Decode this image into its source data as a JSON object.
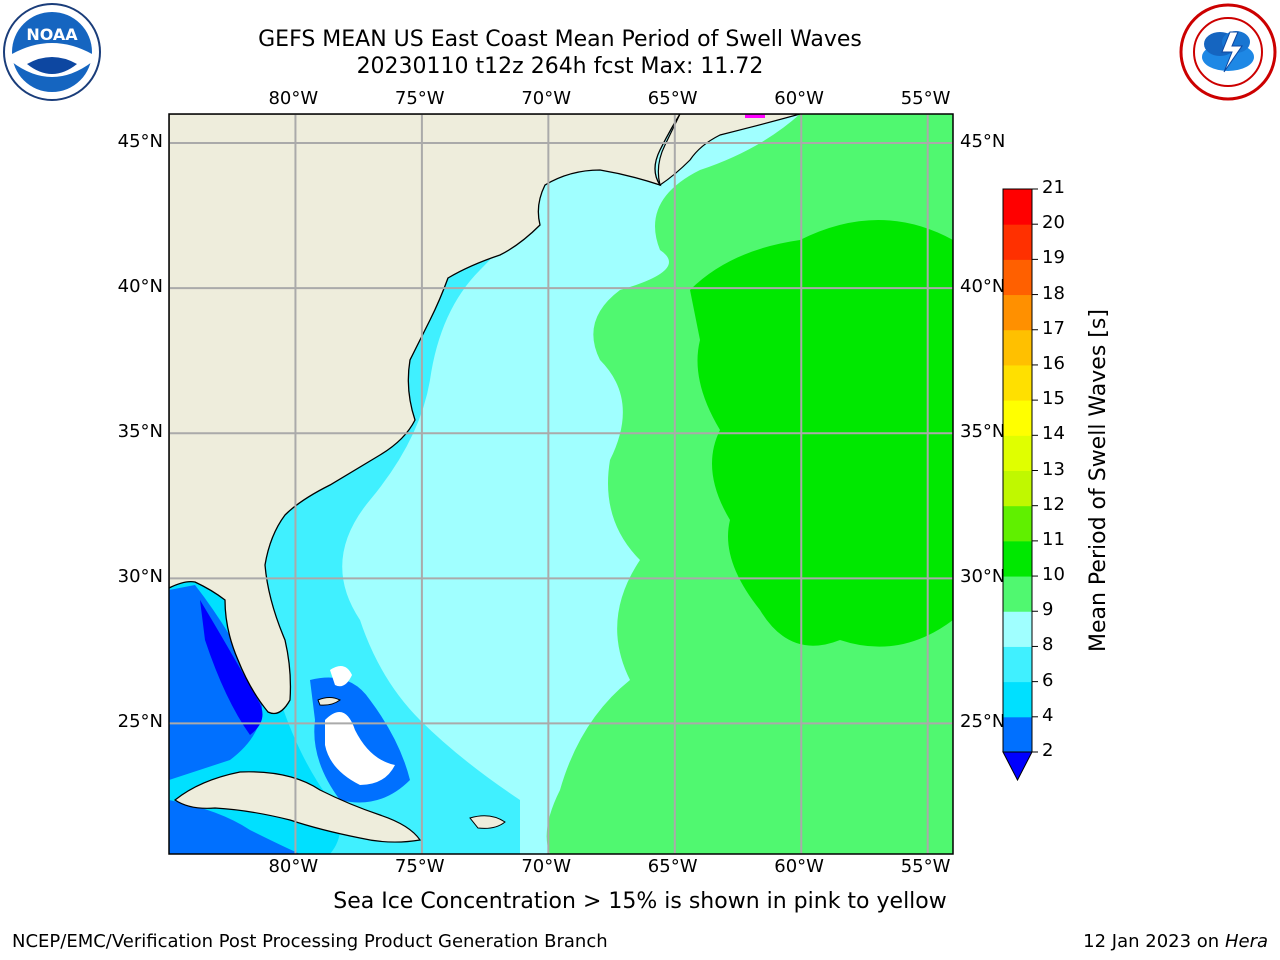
{
  "header": {
    "title_line1": "GEFS MEAN US East Coast Mean Period of Swell Waves",
    "title_line2": "20230110 t12z 264h fcst   Max: 11.72"
  },
  "logos": {
    "noaa": {
      "text": "NOAA",
      "icon": "noaa-seal-icon"
    },
    "nws": {
      "icon": "nws-seal-icon"
    }
  },
  "map": {
    "lon_ticks": [
      "80°W",
      "75°W",
      "70°W",
      "65°W",
      "60°W",
      "55°W"
    ],
    "lat_ticks": [
      "45°N",
      "40°N",
      "35°N",
      "30°N",
      "25°N"
    ],
    "lon_range": [
      -85,
      -54
    ],
    "lat_range": [
      20.5,
      46
    ],
    "colors": {
      "land": "#eeeddc",
      "grid": "#aaaaaa",
      "coast": "#000000"
    }
  },
  "colorbar": {
    "label": "Mean Period of Swell Waves [s]",
    "ticks": [
      "2",
      "4",
      "6",
      "8",
      "9",
      "10",
      "11",
      "12",
      "13",
      "14",
      "15",
      "16",
      "17",
      "18",
      "19",
      "20",
      "21"
    ],
    "colors": [
      "#0070ff",
      "#00e0ff",
      "#40f0ff",
      "#a0ffff",
      "#50f870",
      "#00e800",
      "#60f000",
      "#c0f800",
      "#e0ff00",
      "#ffff00",
      "#ffe000",
      "#ffc000",
      "#ff9000",
      "#ff6000",
      "#ff3000",
      "#ff0000"
    ],
    "under_color": "#0000ff"
  },
  "footer": {
    "note": "Sea Ice Concentration > 15% is shown in pink to yellow",
    "credit_left": "NCEP/EMC/Verification Post Processing Product Generation Branch",
    "credit_right_date": "12 Jan 2023 on",
    "credit_right_machine": "Hera"
  }
}
